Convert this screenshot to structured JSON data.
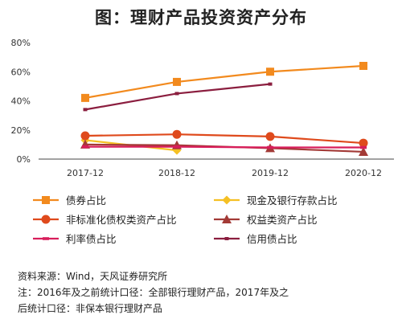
{
  "title": "图：理财产品投资资产分布",
  "chart_data": {
    "type": "line",
    "categories": [
      "2017-12",
      "2018-12",
      "2019-12",
      "2020-12"
    ],
    "ylim": [
      0,
      80
    ],
    "yticks": [
      "0%",
      "20%",
      "40%",
      "60%",
      "80%"
    ],
    "grid": false,
    "legend_position": "bottom",
    "series": [
      {
        "name": "债券占比",
        "values": [
          42,
          53,
          60,
          64
        ],
        "color": "#F28A1E",
        "marker": "square"
      },
      {
        "name": "现金及银行存款占比",
        "values": [
          13,
          6,
          null,
          null
        ],
        "color": "#F5C024",
        "marker": "diamond"
      },
      {
        "name": "非标准化债权类资产占比",
        "values": [
          16,
          17,
          15.5,
          11
        ],
        "color": "#DF4A1C",
        "marker": "circle"
      },
      {
        "name": "权益类资产占比",
        "values": [
          10,
          9.5,
          7.5,
          5
        ],
        "color": "#A33A36",
        "marker": "triangle"
      },
      {
        "name": "利率债占比",
        "values": [
          8.5,
          8.5,
          8,
          8
        ],
        "color": "#D81E5B",
        "marker": "dash"
      },
      {
        "name": "信用债占比",
        "values": [
          34,
          45,
          51.5,
          null
        ],
        "color": "#8B1E3F",
        "marker": "small-square"
      }
    ]
  },
  "source_lines": [
    "资料来源：Wind，天风证券研究所",
    "注：2016年及之前统计口径：全部银行理财产品，2017年及之",
    "后统计口径：非保本银行理财产品"
  ]
}
